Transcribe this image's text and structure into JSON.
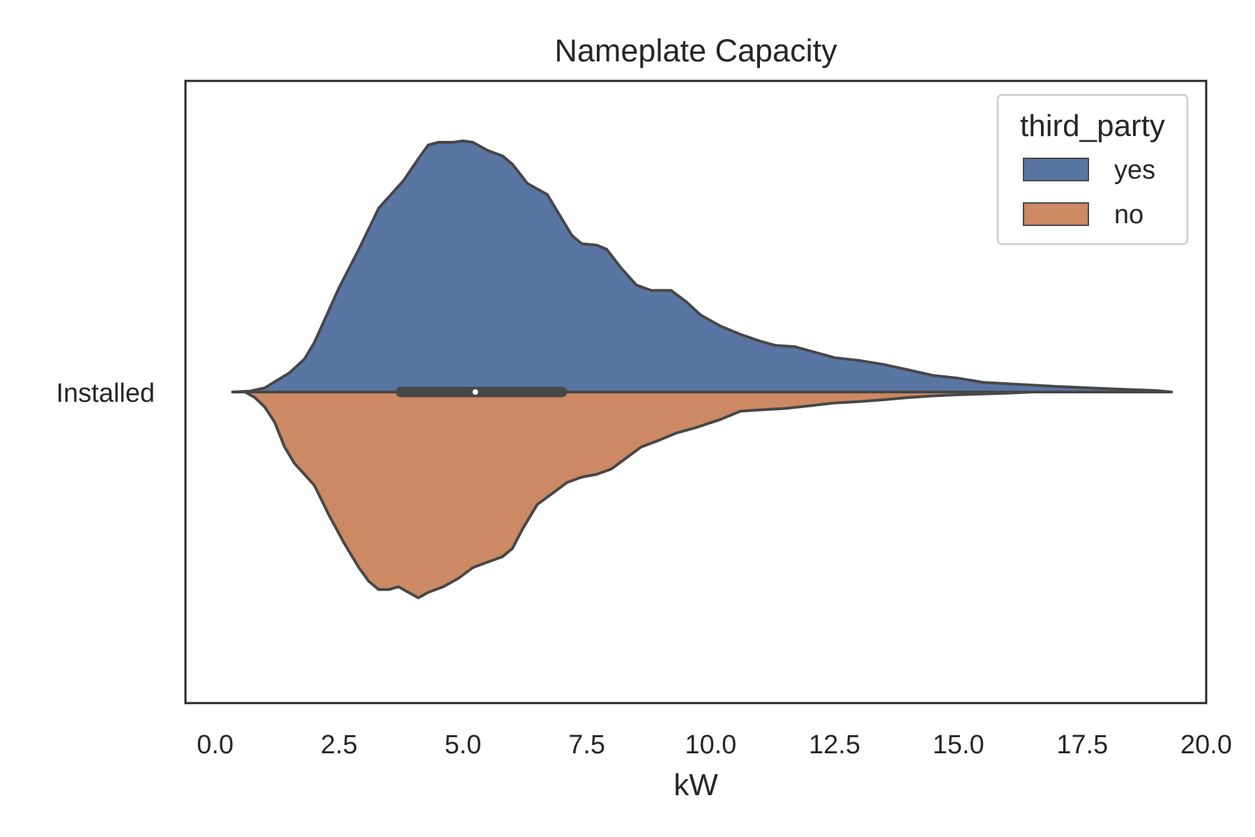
{
  "chart_data": {
    "type": "violin",
    "title": "Nameplate Capacity",
    "xlabel": "kW",
    "ylabel": "",
    "xlim": [
      -0.6,
      20.0
    ],
    "x_ticks": [
      0.0,
      2.5,
      5.0,
      7.5,
      10.0,
      12.5,
      15.0,
      17.5,
      20.0
    ],
    "x_tick_labels": [
      "0.0",
      "2.5",
      "5.0",
      "7.5",
      "10.0",
      "12.5",
      "15.0",
      "17.5",
      "20.0"
    ],
    "categories": [
      "Installed"
    ],
    "split": true,
    "grid": false,
    "legend": {
      "title": "third_party",
      "placement": "top-right",
      "entries": [
        "yes",
        "no"
      ]
    },
    "inner_box": {
      "q1": 3.75,
      "median": 5.25,
      "q3": 7.0,
      "whisker_low": 0.35,
      "whisker_high": 19.3
    },
    "series": [
      {
        "name": "yes",
        "color": "#5975a4",
        "side": "upper",
        "density": [
          [
            0.35,
            0.0
          ],
          [
            0.7,
            0.003
          ],
          [
            1.0,
            0.015
          ],
          [
            1.5,
            0.07
          ],
          [
            1.8,
            0.12
          ],
          [
            2.0,
            0.18
          ],
          [
            2.3,
            0.3
          ],
          [
            2.5,
            0.38
          ],
          [
            2.9,
            0.52
          ],
          [
            3.3,
            0.67
          ],
          [
            3.6,
            0.73
          ],
          [
            3.8,
            0.77
          ],
          [
            4.1,
            0.85
          ],
          [
            4.3,
            0.9
          ],
          [
            4.5,
            0.91
          ],
          [
            4.8,
            0.91
          ],
          [
            5.0,
            0.915
          ],
          [
            5.2,
            0.91
          ],
          [
            5.5,
            0.88
          ],
          [
            5.8,
            0.86
          ],
          [
            6.0,
            0.83
          ],
          [
            6.3,
            0.76
          ],
          [
            6.5,
            0.74
          ],
          [
            6.7,
            0.72
          ],
          [
            6.9,
            0.66
          ],
          [
            7.2,
            0.57
          ],
          [
            7.4,
            0.54
          ],
          [
            7.7,
            0.535
          ],
          [
            7.9,
            0.52
          ],
          [
            8.2,
            0.45
          ],
          [
            8.5,
            0.39
          ],
          [
            8.8,
            0.37
          ],
          [
            9.2,
            0.37
          ],
          [
            9.5,
            0.33
          ],
          [
            9.8,
            0.28
          ],
          [
            10.2,
            0.24
          ],
          [
            10.6,
            0.21
          ],
          [
            11.0,
            0.185
          ],
          [
            11.3,
            0.17
          ],
          [
            11.7,
            0.165
          ],
          [
            12.0,
            0.15
          ],
          [
            12.5,
            0.125
          ],
          [
            13.0,
            0.115
          ],
          [
            13.5,
            0.1
          ],
          [
            14.0,
            0.08
          ],
          [
            14.5,
            0.06
          ],
          [
            15.0,
            0.05
          ],
          [
            15.5,
            0.035
          ],
          [
            16.0,
            0.03
          ],
          [
            17.0,
            0.02
          ],
          [
            18.0,
            0.012
          ],
          [
            19.0,
            0.005
          ],
          [
            19.3,
            0.0
          ]
        ]
      },
      {
        "name": "no",
        "color": "#cc8963",
        "side": "lower",
        "density": [
          [
            0.6,
            0.0
          ],
          [
            0.8,
            0.02
          ],
          [
            1.0,
            0.055
          ],
          [
            1.2,
            0.11
          ],
          [
            1.4,
            0.2
          ],
          [
            1.6,
            0.26
          ],
          [
            1.8,
            0.3
          ],
          [
            2.0,
            0.34
          ],
          [
            2.3,
            0.45
          ],
          [
            2.6,
            0.55
          ],
          [
            2.9,
            0.64
          ],
          [
            3.1,
            0.69
          ],
          [
            3.3,
            0.72
          ],
          [
            3.5,
            0.72
          ],
          [
            3.7,
            0.71
          ],
          [
            3.9,
            0.73
          ],
          [
            4.1,
            0.75
          ],
          [
            4.3,
            0.73
          ],
          [
            4.6,
            0.71
          ],
          [
            4.9,
            0.68
          ],
          [
            5.2,
            0.64
          ],
          [
            5.5,
            0.62
          ],
          [
            5.8,
            0.6
          ],
          [
            6.0,
            0.57
          ],
          [
            6.2,
            0.5
          ],
          [
            6.5,
            0.41
          ],
          [
            6.8,
            0.37
          ],
          [
            7.1,
            0.33
          ],
          [
            7.4,
            0.31
          ],
          [
            7.7,
            0.3
          ],
          [
            8.0,
            0.28
          ],
          [
            8.3,
            0.24
          ],
          [
            8.6,
            0.2
          ],
          [
            8.9,
            0.18
          ],
          [
            9.3,
            0.15
          ],
          [
            9.7,
            0.13
          ],
          [
            10.2,
            0.1
          ],
          [
            10.6,
            0.07
          ],
          [
            11.0,
            0.065
          ],
          [
            11.5,
            0.06
          ],
          [
            12.0,
            0.05
          ],
          [
            12.5,
            0.04
          ],
          [
            13.0,
            0.035
          ],
          [
            13.5,
            0.028
          ],
          [
            14.0,
            0.02
          ],
          [
            14.5,
            0.014
          ],
          [
            15.0,
            0.01
          ],
          [
            15.5,
            0.007
          ],
          [
            16.0,
            0.004
          ],
          [
            16.5,
            0.0
          ]
        ]
      }
    ]
  }
}
